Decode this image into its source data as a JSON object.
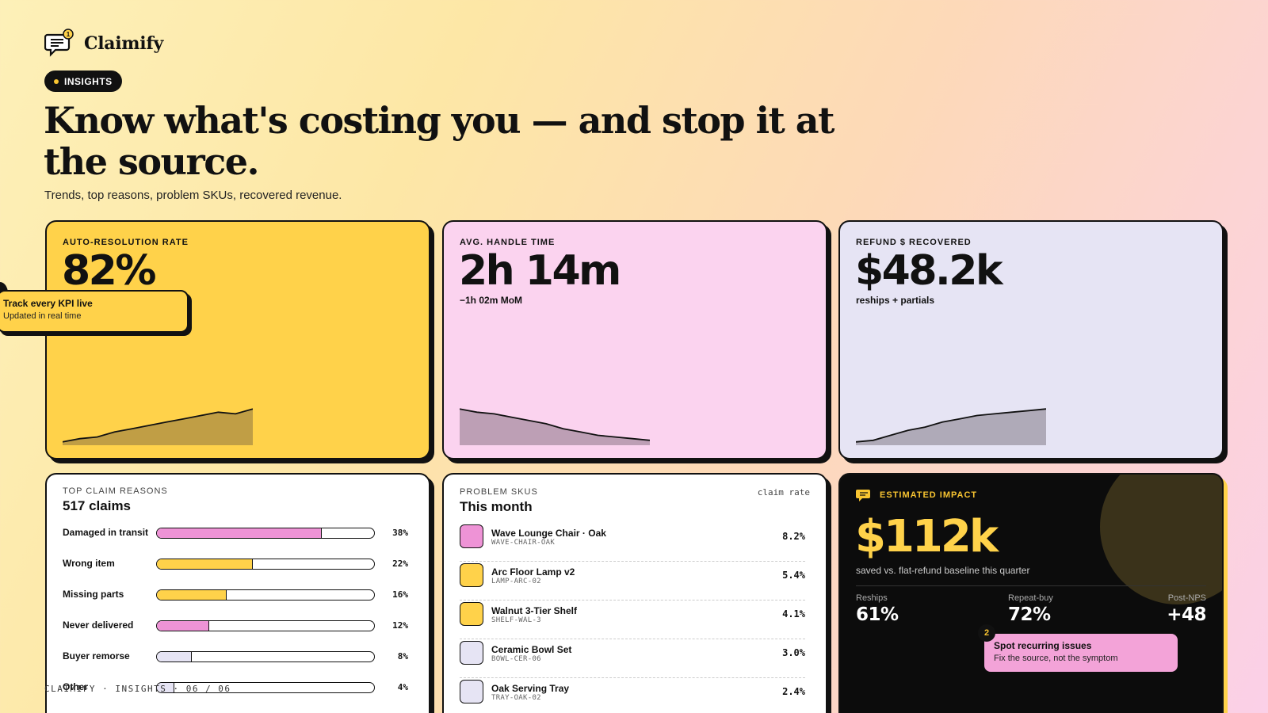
{
  "brand": {
    "name": "Claimify",
    "notification_count": "1"
  },
  "badge": {
    "label": "INSIGHTS"
  },
  "hero": {
    "headline": "Know what's costing you — and stop it at the source.",
    "subhead": "Trends, top reasons, problem SKUs, recovered revenue."
  },
  "kpis": [
    {
      "label": "AUTO-RESOLUTION RATE",
      "value": "82%",
      "sub": "",
      "bg": "#ffd24a",
      "trend": [
        2,
        4,
        5,
        8,
        10,
        12,
        14,
        16,
        18,
        20,
        19,
        22
      ]
    },
    {
      "label": "AVG. HANDLE TIME",
      "value": "2h 14m",
      "sub": "−1h 02m MoM",
      "bg": "#fbd3ef",
      "trend": [
        22,
        20,
        19,
        17,
        15,
        13,
        10,
        8,
        6,
        5,
        4,
        3
      ]
    },
    {
      "label": "REFUND $ RECOVERED",
      "value": "$48.2k",
      "sub": "reships + partials",
      "bg": "#e6e4f4",
      "trend": [
        2,
        3,
        6,
        9,
        11,
        14,
        16,
        18,
        19,
        20,
        21,
        22
      ]
    }
  ],
  "callout": {
    "title": "Track every KPI live",
    "sub": "Updated in real time"
  },
  "reasons": {
    "title": "TOP CLAIM REASONS",
    "count": "517 claims",
    "items": [
      {
        "label": "Damaged in transit",
        "pct": "38%",
        "value": 0.76,
        "color": "#ee93d6"
      },
      {
        "label": "Wrong item",
        "pct": "22%",
        "value": 0.44,
        "color": "#ffd24a"
      },
      {
        "label": "Missing parts",
        "pct": "16%",
        "value": 0.32,
        "color": "#ffd24a"
      },
      {
        "label": "Never delivered",
        "pct": "12%",
        "value": 0.24,
        "color": "#ee93d6"
      },
      {
        "label": "Buyer remorse",
        "pct": "8%",
        "value": 0.16,
        "color": "#e6e4f4"
      },
      {
        "label": "Other",
        "pct": "4%",
        "value": 0.08,
        "color": "#e6e4f4"
      }
    ]
  },
  "skus": {
    "title": "PROBLEM SKUS",
    "period": "This month",
    "rate_header": "claim rate",
    "items": [
      {
        "name": "Wave Lounge Chair · Oak",
        "code": "WAVE-CHAIR-OAK",
        "rate": "8.2%",
        "color": "#ee93d6"
      },
      {
        "name": "Arc Floor Lamp v2",
        "code": "LAMP-ARC-02",
        "rate": "5.4%",
        "color": "#ffd24a"
      },
      {
        "name": "Walnut 3-Tier Shelf",
        "code": "SHELF-WAL-3",
        "rate": "4.1%",
        "color": "#ffd24a"
      },
      {
        "name": "Ceramic Bowl Set",
        "code": "BOWL-CER-06",
        "rate": "3.0%",
        "color": "#e6e4f4"
      },
      {
        "name": "Oak Serving Tray",
        "code": "TRAY-OAK-02",
        "rate": "2.4%",
        "color": "#e6e4f4"
      }
    ]
  },
  "impact": {
    "label": "ESTIMATED IMPACT",
    "value": "$112k",
    "sub": "saved vs. flat-refund baseline this quarter",
    "stats": [
      {
        "label": "Reships",
        "value": "61%"
      },
      {
        "label": "Repeat-buy",
        "value": "72%"
      },
      {
        "label": "Post-NPS",
        "value": "+48"
      }
    ]
  },
  "step_callout": {
    "number": "2",
    "title": "Spot recurring issues",
    "sub": "Fix the source, not the symptom"
  },
  "footer": {
    "text": "CLAIMIFY · INSIGHTS · 06 / 06"
  }
}
